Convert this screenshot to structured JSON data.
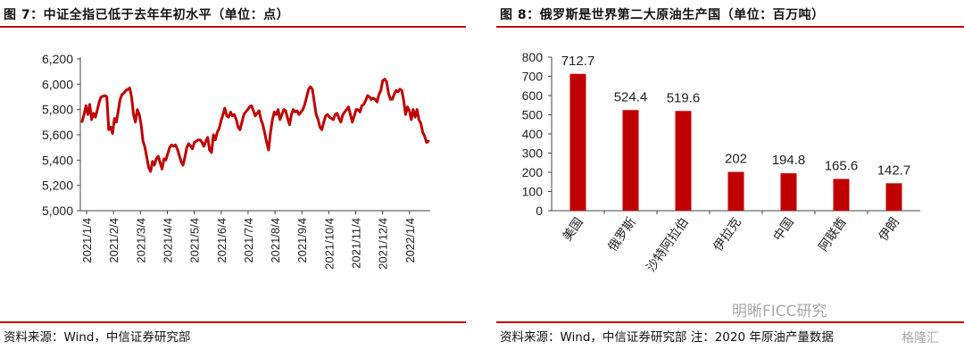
{
  "left_panel": {
    "title": "图 7：中证全指已低于去年年初水平（单位：点）",
    "source": "资料来源：Wind，中信证券研究部"
  },
  "right_panel": {
    "title": "图 8：俄罗斯是世界第二大原油生产国（单位：百万吨）",
    "source": "资料来源：Wind，中信证券研究部    注：2020 年原油产量数据"
  },
  "watermark": {
    "text": "明晰FICC研究",
    "sub": "格隆汇"
  },
  "chart_data": [
    {
      "type": "line",
      "title": "",
      "xlabel": "",
      "ylabel": "",
      "ylim": [
        5000,
        6200
      ],
      "yticks": [
        5000,
        5200,
        5400,
        5600,
        5800,
        6000,
        6200
      ],
      "yticklabels": [
        "5,000",
        "5,200",
        "5,400",
        "5,600",
        "5,800",
        "6,000",
        "6,200"
      ],
      "xticklabels": [
        "2021/1/4",
        "2021/2/4",
        "2021/3/4",
        "2021/4/4",
        "2021/5/4",
        "2021/6/4",
        "2021/7/4",
        "2021/8/4",
        "2021/9/4",
        "2021/10/4",
        "2021/11/4",
        "2021/12/4",
        "2022/1/4"
      ],
      "grid": false,
      "color": "#c00000",
      "series": [
        {
          "values": [
            5705,
            5760,
            5830,
            5760,
            5840,
            5720,
            5770,
            5740,
            5800,
            5860,
            5900,
            5905,
            5910,
            5900,
            5640,
            5660,
            5610,
            5730,
            5700,
            5790,
            5880,
            5920,
            5930,
            5950,
            5960,
            5970,
            5900,
            5760,
            5700,
            5800,
            5760,
            5680,
            5550,
            5500,
            5420,
            5340,
            5310,
            5390,
            5360,
            5410,
            5430,
            5380,
            5330,
            5410,
            5400,
            5450,
            5500,
            5520,
            5510,
            5520,
            5490,
            5440,
            5390,
            5360,
            5420,
            5500,
            5530,
            5510,
            5490,
            5540,
            5550,
            5560,
            5560,
            5540,
            5510,
            5550,
            5580,
            5480,
            5460,
            5600,
            5560,
            5620,
            5650,
            5710,
            5760,
            5810,
            5750,
            5740,
            5780,
            5750,
            5760,
            5720,
            5660,
            5640,
            5700,
            5760,
            5780,
            5800,
            5820,
            5830,
            5790,
            5750,
            5770,
            5790,
            5720,
            5680,
            5610,
            5540,
            5480,
            5620,
            5720,
            5780,
            5760,
            5800,
            5720,
            5760,
            5800,
            5790,
            5730,
            5680,
            5760,
            5800,
            5780,
            5790,
            5760,
            5780,
            5800,
            5840,
            5900,
            5960,
            5980,
            5960,
            5860,
            5760,
            5720,
            5660,
            5640,
            5700,
            5750,
            5760,
            5740,
            5730,
            5720,
            5760,
            5770,
            5730,
            5700,
            5760,
            5780,
            5800,
            5820,
            5760,
            5700,
            5750,
            5800,
            5800,
            5780,
            5830,
            5840,
            5870,
            5910,
            5900,
            5880,
            5890,
            5880,
            5860,
            5920,
            5950,
            6030,
            6040,
            6020,
            5930,
            5880,
            5880,
            5920,
            5950,
            5940,
            5960,
            5950,
            5870,
            5760,
            5820,
            5790,
            5720,
            5800,
            5740,
            5800,
            5720,
            5690,
            5620,
            5590,
            5540,
            5550
          ]
        }
      ]
    },
    {
      "type": "bar",
      "title": "",
      "xlabel": "",
      "ylabel": "",
      "ylim": [
        0,
        800
      ],
      "yticks": [
        0,
        100,
        200,
        300,
        400,
        500,
        600,
        700,
        800
      ],
      "categories": [
        "美国",
        "俄罗斯",
        "沙特阿拉伯",
        "伊拉克",
        "中国",
        "阿联酋",
        "伊朗"
      ],
      "values": [
        712.7,
        524.4,
        519.6,
        202,
        194.8,
        165.6,
        142.7
      ],
      "labels": [
        "712.7",
        "524.4",
        "519.6",
        "202",
        "194.8",
        "165.6",
        "142.7"
      ],
      "grid": false,
      "color": "#c00000"
    }
  ]
}
